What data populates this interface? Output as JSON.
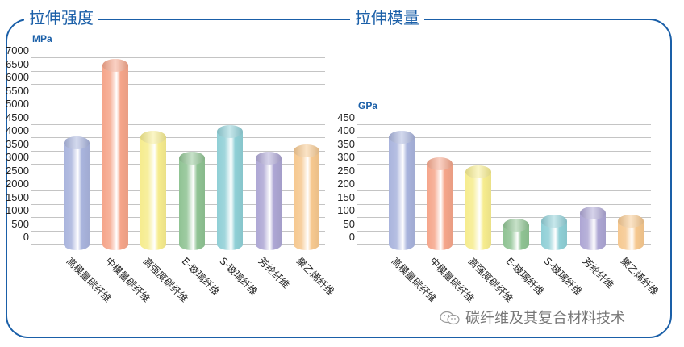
{
  "panels": [
    {
      "title": "拉伸强度",
      "unit": "MPa"
    },
    {
      "title": "拉伸模量",
      "unit": "GPa"
    }
  ],
  "watermark": {
    "text": "碳纤维及其复合材料技术",
    "icon": "wechat-icon"
  },
  "chart_data": [
    {
      "type": "bar",
      "title": "拉伸强度",
      "ylabel": "MPa",
      "xlabel": "",
      "ylim": [
        0,
        7000
      ],
      "yticks": [
        0,
        500,
        1000,
        1500,
        2000,
        2500,
        3000,
        3500,
        4000,
        4500,
        5000,
        5500,
        6000,
        6500,
        7000
      ],
      "grid": true,
      "categories": [
        "高模量碳纤维",
        "中模量碳纤维",
        "高强度碳纤维",
        "E-玻璃纤维",
        "S-玻璃纤维",
        "芳纶纤维",
        "聚乙烯纤维"
      ],
      "values": [
        3800,
        6700,
        4000,
        3200,
        4200,
        3200,
        3500
      ],
      "colors": [
        "#a9b4dd",
        "#f5a58a",
        "#f6ec8e",
        "#8fc393",
        "#8fcfd6",
        "#ada6d4",
        "#f6c88f"
      ]
    },
    {
      "type": "bar",
      "title": "拉伸模量",
      "ylabel": "GPa",
      "xlabel": "",
      "ylim": [
        0,
        450
      ],
      "yticks": [
        0,
        50,
        100,
        150,
        200,
        250,
        300,
        350,
        400,
        450
      ],
      "grid": true,
      "categories": [
        "高模量碳纤维",
        "中模量碳纤维",
        "高强度碳纤维",
        "E-玻璃纤维",
        "S-玻璃纤维",
        "芳纶纤维",
        "聚乙烯纤维"
      ],
      "values": [
        400,
        300,
        270,
        70,
        85,
        115,
        85
      ],
      "colors": [
        "#a9b4dd",
        "#f5a58a",
        "#f6ec8e",
        "#8fc393",
        "#8fcfd6",
        "#ada6d4",
        "#f6c88f"
      ]
    }
  ]
}
